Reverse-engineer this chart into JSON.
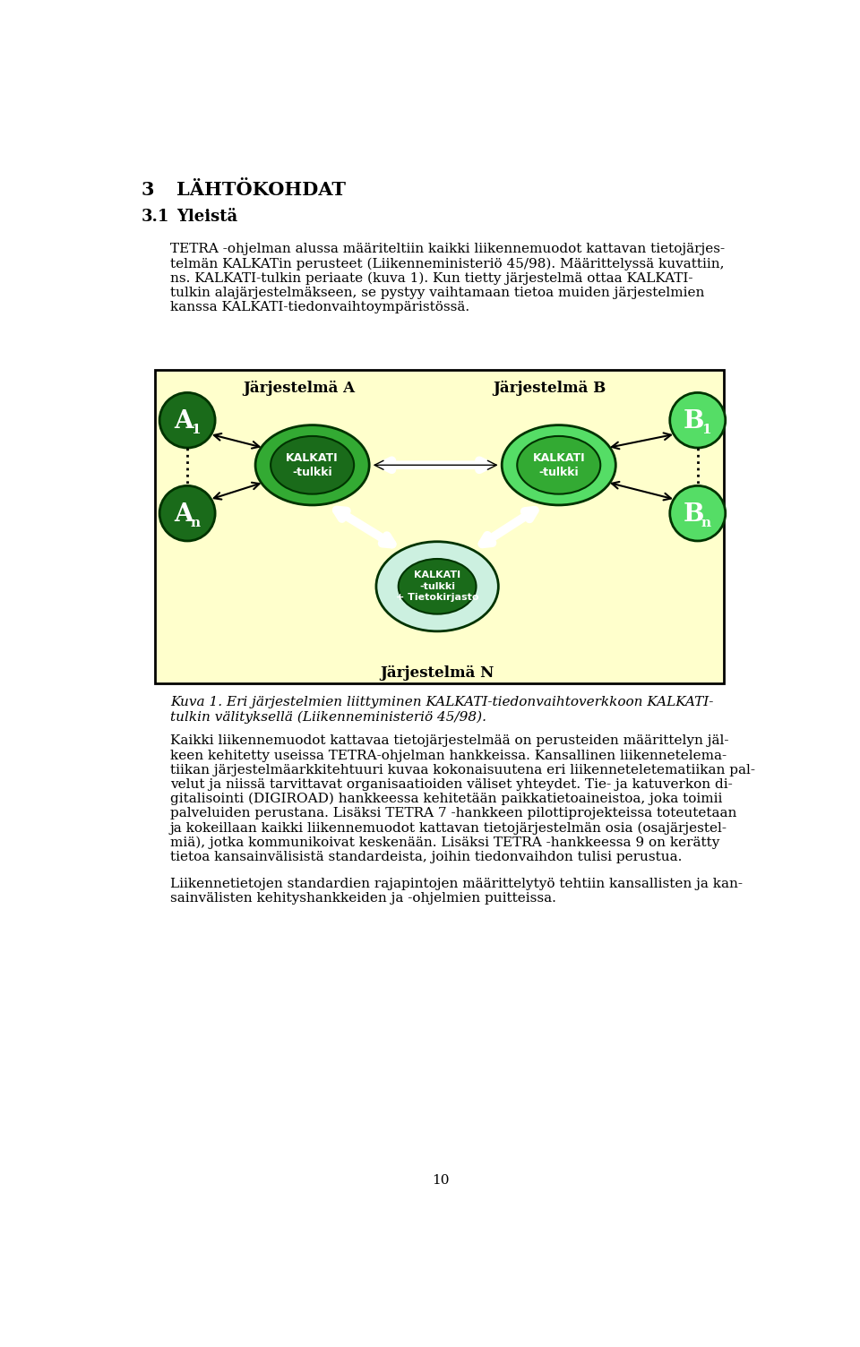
{
  "page_bg": "#ffffff",
  "fig_width": 9.6,
  "fig_height": 15.04,
  "heading1_num": "3",
  "heading1_text": "LÄHTÖKOHDAT",
  "heading2_num": "3.1",
  "heading2_text": "Yleistä",
  "para1_lines": [
    "TETRA -ohjelman alussa määriteltiin kaikki liikennemuodot kattavan tietojärjes-",
    "telmän KALKATin perusteet (Liikenneministeriö 45/98). Määrittelyssä kuvattiin,",
    "ns. KALKATI-tulkin periaate (kuva 1). Kun tietty järjestelmä ottaa KALKATI-",
    "tulkin alajärjestelmäkseen, se pystyy vaihtamaan tietoa muiden järjestelmien",
    "kanssa KALKATI-tiedonvaihtoympäristössä."
  ],
  "caption_lines": [
    "Kuva 1. Eri järjestelmien liittyminen KALKATI-tiedonvaihtoverkkoon KALKATI-",
    "tulkin välityksellä (Liikenneministeriö 45/98)."
  ],
  "para2_lines": [
    "Kaikki liikennemuodot kattavaa tietojärjestelmää on perusteiden määrittelyn jäl-",
    "keen kehitetty useissa TETRA-ohjelman hankkeissa. Kansallinen liikennetelema-",
    "tiikan järjestelmäarkkitehtuuri kuvaa kokonaisuutena eri liikenneteletematiikan pal-",
    "velut ja niissä tarvittavat organisaatioiden väliset yhteydet. Tie- ja katuverkon di-",
    "gitalisointi (DIGIROAD) hankkeessa kehitetään paikkatietoaineistoa, joka toimii",
    "palveluiden perustana. Lisäksi TETRA 7 -hankkeen pilottiprojekteissa toteutetaan",
    "ja kokeillaan kaikki liikennemuodot kattavan tietojärjestelmän osia (osajärjestel-",
    "miä), jotka kommunikoivat keskenään. Lisäksi TETRA -hankkeessa 9 on kerätty",
    "tietoa kansainvälisistä standardeista, joihin tiedonvaihdon tulisi perustua."
  ],
  "para3_lines": [
    "Liikennetietojen standardien rajapintojen määrittelytyö tehtiin kansallisten ja kan-",
    "sainvälisten kehityshankkeiden ja -ohjelmien puitteissa."
  ],
  "page_num": "10",
  "box_bg": "#ffffcc",
  "box_border": "#000000",
  "dark_green": "#1a6b1a",
  "mid_green": "#33aa33",
  "light_green": "#55dd66",
  "pale_green": "#ccf0e0",
  "label_Jarj_A": "Järjestelmä A",
  "label_Jarj_B": "Järjestelmä B",
  "label_Jarj_N": "Järjestelmä N",
  "label_kalkati": "KALKATI\n-tulkki",
  "label_kalkati_tietok": "KALKATI\n-tulkki\n+ Tietokirjasto"
}
